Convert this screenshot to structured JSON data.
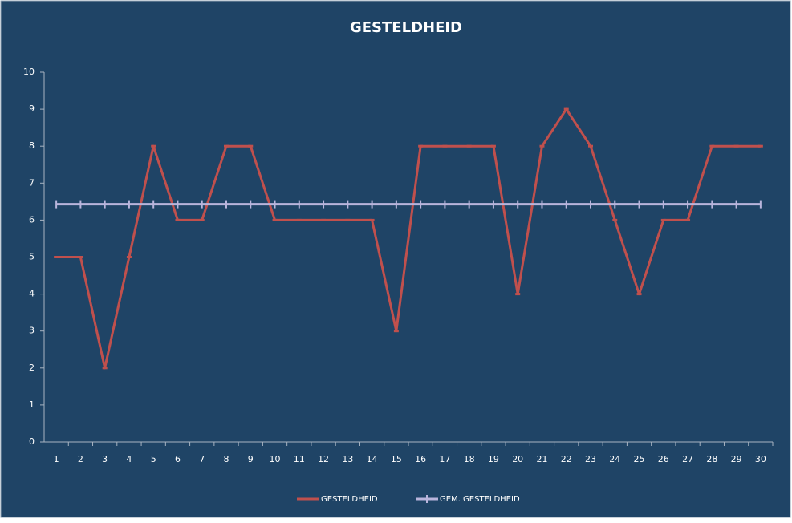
{
  "chart_data": {
    "type": "line",
    "title": "GESTELDHEID",
    "categories": [
      1,
      2,
      3,
      4,
      5,
      6,
      7,
      8,
      9,
      10,
      11,
      12,
      13,
      14,
      15,
      16,
      17,
      18,
      19,
      20,
      21,
      22,
      23,
      24,
      25,
      26,
      27,
      28,
      29,
      30
    ],
    "series": [
      {
        "name": "GESTELDHEID",
        "color": "#c0504d",
        "values": [
          5,
          5,
          2,
          5,
          8,
          6,
          6,
          8,
          8,
          6,
          6,
          6,
          6,
          6,
          3,
          8,
          8,
          8,
          8,
          4,
          8,
          9,
          8,
          6,
          4,
          6,
          6,
          8,
          8,
          8
        ]
      },
      {
        "name": "GEM. GESTELDHEID",
        "color": "#b9b5dc",
        "values": [
          6.43,
          6.43,
          6.43,
          6.43,
          6.43,
          6.43,
          6.43,
          6.43,
          6.43,
          6.43,
          6.43,
          6.43,
          6.43,
          6.43,
          6.43,
          6.43,
          6.43,
          6.43,
          6.43,
          6.43,
          6.43,
          6.43,
          6.43,
          6.43,
          6.43,
          6.43,
          6.43,
          6.43,
          6.43,
          6.43
        ]
      }
    ],
    "ylim": [
      0,
      10
    ],
    "yticks": [
      0,
      1,
      2,
      3,
      4,
      5,
      6,
      7,
      8,
      9,
      10
    ],
    "legend": "bottom"
  }
}
